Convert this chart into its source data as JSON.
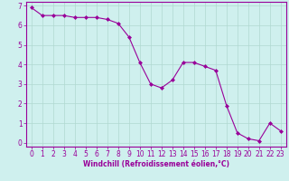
{
  "x": [
    0,
    1,
    2,
    3,
    4,
    5,
    6,
    7,
    8,
    9,
    10,
    11,
    12,
    13,
    14,
    15,
    16,
    17,
    18,
    19,
    20,
    21,
    22,
    23
  ],
  "y": [
    6.9,
    6.5,
    6.5,
    6.5,
    6.4,
    6.4,
    6.4,
    6.3,
    6.1,
    5.4,
    4.1,
    3.0,
    2.8,
    3.2,
    4.1,
    4.1,
    3.9,
    3.7,
    1.9,
    0.5,
    0.2,
    0.1,
    1.0,
    0.6
  ],
  "line_color": "#990099",
  "marker": "D",
  "marker_size": 2,
  "bg_color": "#cff0ee",
  "grid_color": "#b0d8d0",
  "xlabel": "Windchill (Refroidissement éolien,°C)",
  "xlabel_color": "#990099",
  "tick_color": "#990099",
  "spine_color": "#990099",
  "ylim": [
    -0.2,
    7.2
  ],
  "xlim": [
    -0.5,
    23.5
  ],
  "yticks": [
    0,
    1,
    2,
    3,
    4,
    5,
    6,
    7
  ],
  "xticks": [
    0,
    1,
    2,
    3,
    4,
    5,
    6,
    7,
    8,
    9,
    10,
    11,
    12,
    13,
    14,
    15,
    16,
    17,
    18,
    19,
    20,
    21,
    22,
    23
  ],
  "xlabel_fontsize": 5.5,
  "tick_fontsize": 5.5
}
